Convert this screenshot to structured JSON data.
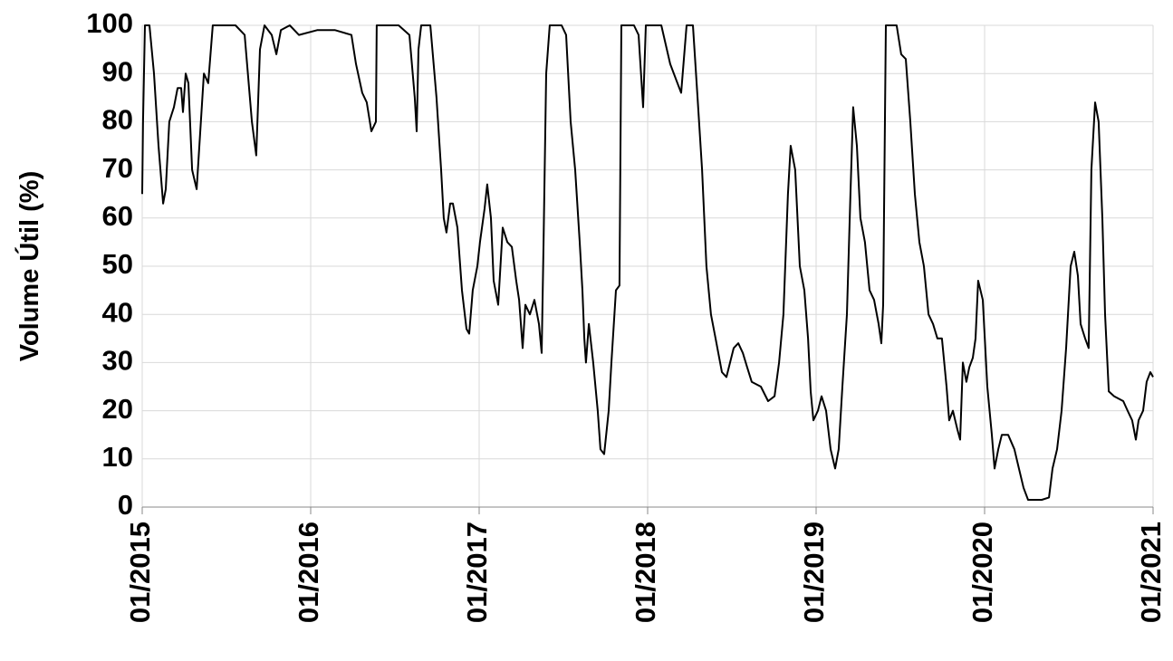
{
  "chart_data": {
    "type": "line",
    "y_label": "Volume Útil (%)",
    "xlim": [
      2015,
      2021
    ],
    "xticks": [
      {
        "value": 2015,
        "label": "01/2015"
      },
      {
        "value": 2016,
        "label": "01/2016"
      },
      {
        "value": 2017,
        "label": "01/2017"
      },
      {
        "value": 2018,
        "label": "01/2018"
      },
      {
        "value": 2019,
        "label": "01/2019"
      },
      {
        "value": 2020,
        "label": "01/2020"
      },
      {
        "value": 2021,
        "label": "01/2021"
      }
    ],
    "ylim": [
      0,
      100
    ],
    "yticks": [
      0,
      10,
      20,
      30,
      40,
      50,
      60,
      70,
      80,
      90,
      100
    ],
    "grid": true,
    "series": [
      {
        "color": "#000000",
        "x": [
          2015.0,
          2015.005,
          2015.016,
          2015.043,
          2015.07,
          2015.097,
          2015.124,
          2015.14,
          2015.161,
          2015.188,
          2015.21,
          2015.231,
          2015.242,
          2015.258,
          2015.274,
          2015.296,
          2015.323,
          2015.339,
          2015.366,
          2015.392,
          2015.419,
          2015.554,
          2015.608,
          2015.651,
          2015.677,
          2015.699,
          2015.726,
          2015.769,
          2015.796,
          2015.823,
          2015.876,
          2015.93,
          2016.038,
          2016.145,
          2016.242,
          2016.269,
          2016.306,
          2016.333,
          2016.36,
          2016.387,
          2016.392,
          2016.414,
          2016.522,
          2016.586,
          2016.618,
          2016.629,
          2016.64,
          2016.656,
          2016.71,
          2016.747,
          2016.774,
          2016.79,
          2016.806,
          2016.828,
          2016.844,
          2016.871,
          2016.898,
          2016.925,
          2016.941,
          2016.962,
          2016.989,
          2017.005,
          2017.032,
          2017.048,
          2017.07,
          2017.086,
          2017.113,
          2017.14,
          2017.167,
          2017.194,
          2017.22,
          2017.237,
          2017.258,
          2017.274,
          2017.301,
          2017.328,
          2017.355,
          2017.371,
          2017.382,
          2017.398,
          2017.419,
          2017.489,
          2017.516,
          2017.543,
          2017.57,
          2017.597,
          2017.613,
          2017.624,
          2017.634,
          2017.651,
          2017.677,
          2017.704,
          2017.72,
          2017.742,
          2017.769,
          2017.785,
          2017.812,
          2017.833,
          2017.844,
          2017.919,
          2017.946,
          2017.973,
          2017.989,
          2018.081,
          2018.134,
          2018.177,
          2018.199,
          2018.231,
          2018.269,
          2018.296,
          2018.323,
          2018.349,
          2018.376,
          2018.403,
          2018.441,
          2018.468,
          2018.511,
          2018.538,
          2018.565,
          2018.591,
          2018.618,
          2018.672,
          2018.715,
          2018.753,
          2018.78,
          2018.806,
          2018.833,
          2018.849,
          2018.876,
          2018.903,
          2018.93,
          2018.952,
          2018.968,
          2018.984,
          2019.011,
          2019.032,
          2019.059,
          2019.086,
          2019.113,
          2019.134,
          2019.156,
          2019.183,
          2019.204,
          2019.22,
          2019.242,
          2019.263,
          2019.29,
          2019.317,
          2019.344,
          2019.371,
          2019.387,
          2019.398,
          2019.414,
          2019.478,
          2019.505,
          2019.532,
          2019.559,
          2019.586,
          2019.613,
          2019.64,
          2019.667,
          2019.694,
          2019.72,
          2019.747,
          2019.774,
          2019.79,
          2019.812,
          2019.839,
          2019.855,
          2019.871,
          2019.892,
          2019.909,
          2019.93,
          2019.946,
          2019.962,
          2019.989,
          2020.016,
          2020.043,
          2020.059,
          2020.081,
          2020.102,
          2020.14,
          2020.177,
          2020.204,
          2020.231,
          2020.258,
          2020.339,
          2020.382,
          2020.403,
          2020.43,
          2020.457,
          2020.484,
          2020.511,
          2020.532,
          2020.554,
          2020.57,
          2020.597,
          2020.618,
          2020.634,
          2020.656,
          2020.677,
          2020.699,
          2020.715,
          2020.737,
          2020.769,
          2020.823,
          2020.849,
          2020.876,
          2020.898,
          2020.914,
          2020.941,
          2020.962,
          2020.984,
          2021.0
        ],
        "values": [
          65,
          80,
          100,
          100,
          90,
          75,
          63,
          66,
          80,
          83,
          87,
          87,
          82,
          90,
          88,
          70,
          66,
          75,
          90,
          88,
          100,
          100,
          98,
          80,
          73,
          95,
          100,
          98,
          94,
          99,
          100,
          98,
          99,
          99,
          98,
          92,
          86,
          84,
          78,
          80,
          100,
          100,
          100,
          98,
          85,
          78,
          95,
          100,
          100,
          85,
          70,
          60,
          57,
          63,
          63,
          58,
          45,
          37,
          36,
          45,
          50,
          55,
          62,
          67,
          60,
          47,
          42,
          58,
          55,
          54,
          47,
          43,
          33,
          42,
          40,
          43,
          38,
          32,
          55,
          90,
          100,
          100,
          98,
          80,
          70,
          55,
          45,
          35,
          30,
          38,
          30,
          20,
          12,
          11,
          20,
          30,
          45,
          46,
          100,
          100,
          98,
          83,
          100,
          100,
          92,
          88,
          86,
          100,
          100,
          85,
          70,
          50,
          40,
          35,
          28,
          27,
          33,
          34,
          32,
          29,
          26,
          25,
          22,
          23,
          30,
          40,
          65,
          75,
          70,
          50,
          45,
          35,
          24,
          18,
          20,
          23,
          20,
          12,
          8,
          12,
          25,
          40,
          65,
          83,
          75,
          60,
          55,
          45,
          43,
          38,
          34,
          42,
          100,
          100,
          94,
          93,
          80,
          65,
          55,
          50,
          40,
          38,
          35,
          35,
          25,
          18,
          20,
          16,
          14,
          30,
          26,
          29,
          31,
          35,
          47,
          43,
          25,
          15,
          8,
          12,
          15,
          15,
          12,
          8,
          4,
          1.5,
          1.5,
          2,
          8,
          12,
          20,
          33,
          50,
          53,
          48,
          38,
          35,
          33,
          70,
          84,
          80,
          60,
          40,
          24,
          23,
          22,
          20,
          18,
          14,
          18,
          20,
          26,
          28,
          27
        ]
      }
    ]
  }
}
